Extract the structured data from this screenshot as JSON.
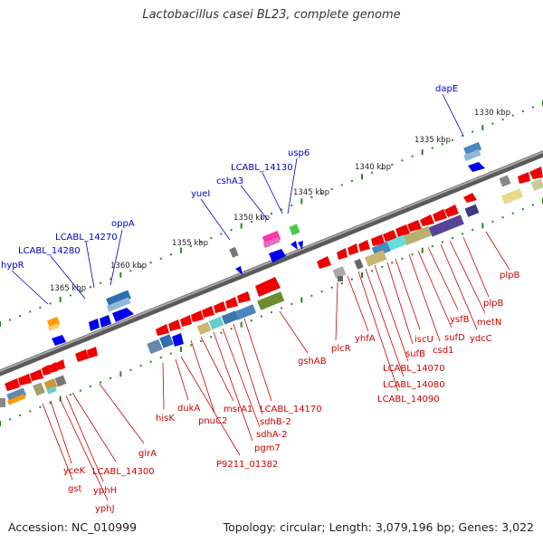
{
  "title": "Lactobacillus casei BL23, complete genome",
  "footer": {
    "accession": "Accession: NC_010999",
    "summary": "Topology: circular; Length: 3,079,196 bp; Genes: 3,022"
  },
  "colors": {
    "forward_label": "#0000cc",
    "reverse_label": "#cc0000",
    "backbone": "#808080",
    "scale_dots": "#228822"
  },
  "scale": {
    "ticks": [
      "1330 kbp",
      "1335 kbp",
      "1340 kbp",
      "1345 kbp",
      "1350 kbp",
      "1355 kbp",
      "1360 kbp",
      "1365 kbp"
    ]
  },
  "labels": {
    "forward": [
      "dapE",
      "usp6",
      "LCABL_14130",
      "cshA3",
      "yueI",
      "oppA",
      "LCABL_14270",
      "LCABL_14280",
      "hypR"
    ],
    "reverse": [
      "plpB",
      "plpB",
      "metN",
      "ydcC",
      "ysfB",
      "sufD",
      "csd1",
      "iscU",
      "sufB",
      "yhfA",
      "LCABL_14070",
      "LCABL_14080",
      "LCABL_14090",
      "plcR",
      "gshAB",
      "LCABL_14170",
      "sdhB-2",
      "sdhA-2",
      "pgm7",
      "msrA1",
      "pnuC2",
      "dukA",
      "P9211_01382",
      "hisK",
      "glrA",
      "LCABL_14300",
      "yceK",
      "yphH",
      "gst",
      "yphJ"
    ]
  }
}
